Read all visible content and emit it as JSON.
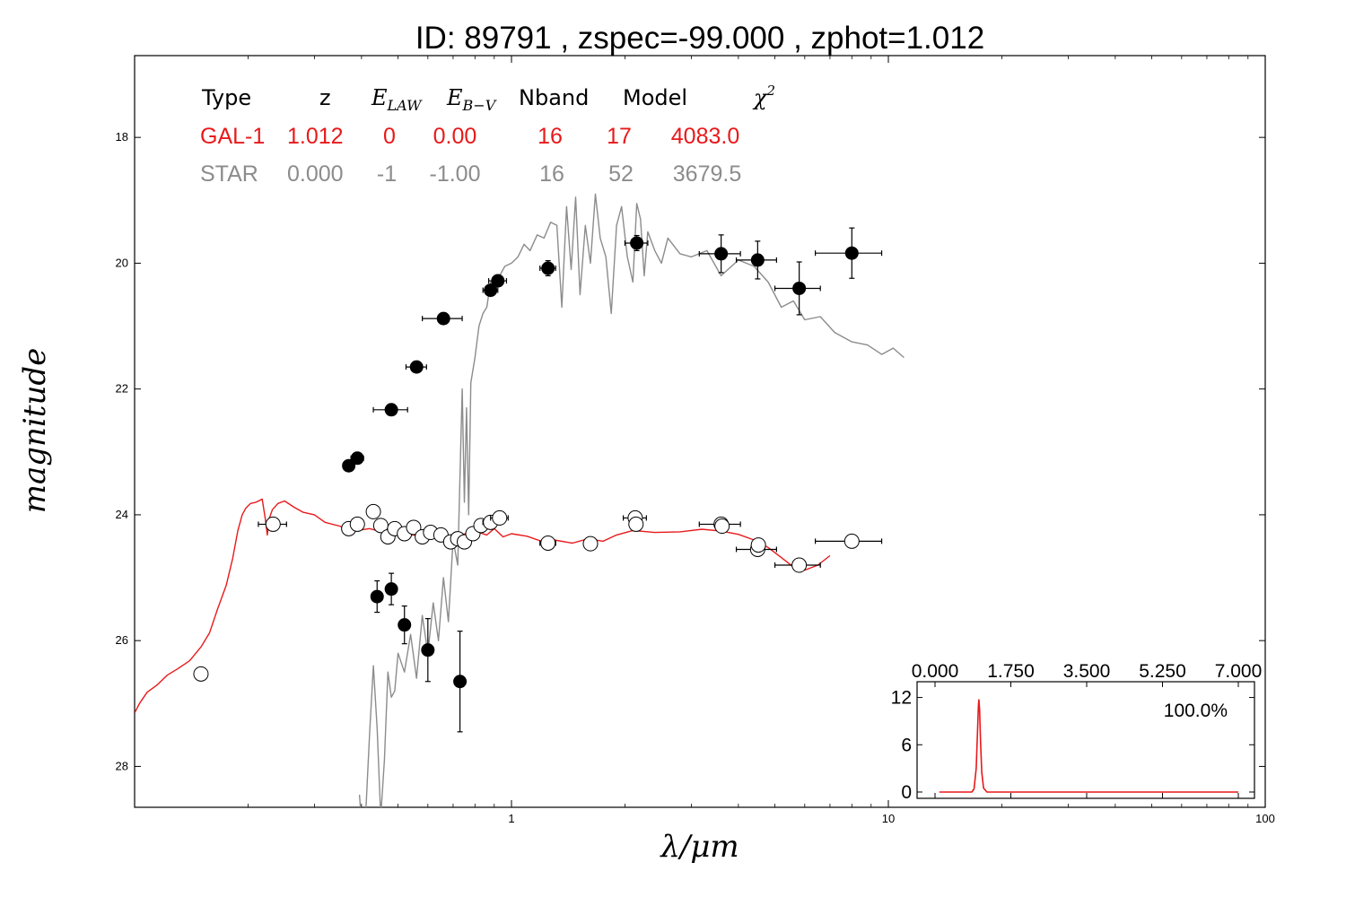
{
  "chart_data": [
    {
      "type": "scatter",
      "title": "ID:  89791 , zspec=-99.000 , zphot=1.012",
      "xlabel": "λ/μm",
      "ylabel": "magnitude",
      "xscale": "log",
      "xlim": [
        0.1,
        100
      ],
      "ylim": [
        28.65,
        16.7
      ],
      "y_inverted": true,
      "xticks": [
        1,
        10,
        100
      ],
      "xtick_labels": [
        "1",
        "10",
        "100"
      ],
      "yticks": [
        18,
        20,
        22,
        24,
        26,
        28
      ],
      "ytick_labels": [
        "18",
        "20",
        "22",
        "24",
        "26",
        "28"
      ],
      "grid": false,
      "colors": {
        "galaxy": "#e8191b",
        "star": "#8c8c8c",
        "axes": "#000000"
      },
      "info_table": {
        "headers": [
          "Type",
          "z",
          "E_LAW",
          "E_B−V",
          "Nband",
          "Model",
          "χ²"
        ],
        "rows": [
          {
            "name": "GAL-1",
            "z": "1.012",
            "elaw": "0",
            "ebv": "0.00",
            "nband": "16",
            "model": "17",
            "chi2": "4083.0",
            "color": "#e8191b"
          },
          {
            "name": "STAR",
            "z": "0.000",
            "elaw": "-1",
            "ebv": "-1.00",
            "nband": "16",
            "model": "52",
            "chi2": "3679.5",
            "color": "#8c8c8c"
          }
        ]
      },
      "series": [
        {
          "name": "GAL-1",
          "kind": "line",
          "color": "#e8191b",
          "x": [
            0.1,
            0.103,
            0.108,
            0.115,
            0.122,
            0.13,
            0.14,
            0.15,
            0.158,
            0.166,
            0.175,
            0.182,
            0.188,
            0.193,
            0.197,
            0.203,
            0.21,
            0.218,
            0.222,
            0.225,
            0.228,
            0.232,
            0.24,
            0.25,
            0.265,
            0.28,
            0.3,
            0.32,
            0.35,
            0.38,
            0.42,
            0.46,
            0.5,
            0.55,
            0.6,
            0.65,
            0.7,
            0.76,
            0.82,
            0.86,
            0.9,
            0.95,
            1.0,
            1.1,
            1.2,
            1.3,
            1.45,
            1.6,
            1.75,
            1.9,
            2.1,
            2.4,
            2.8,
            3.2,
            3.6,
            4.0,
            4.4,
            4.8,
            5.2,
            5.6,
            6.0,
            6.5,
            7.0
          ],
          "y": [
            27.15,
            27.0,
            26.82,
            26.7,
            26.55,
            26.45,
            26.32,
            26.1,
            25.88,
            25.5,
            25.12,
            24.7,
            24.25,
            24.0,
            23.9,
            23.82,
            23.8,
            23.75,
            24.05,
            24.32,
            24.05,
            23.92,
            23.82,
            23.78,
            23.88,
            23.96,
            24.0,
            24.12,
            24.18,
            24.26,
            24.22,
            24.28,
            24.3,
            24.32,
            24.35,
            24.38,
            24.34,
            24.3,
            24.28,
            24.32,
            24.22,
            24.35,
            24.3,
            24.34,
            24.42,
            24.4,
            24.45,
            24.38,
            24.42,
            24.32,
            24.25,
            24.28,
            24.27,
            24.23,
            24.26,
            24.31,
            24.4,
            24.52,
            24.68,
            24.83,
            24.88,
            24.8,
            24.65
          ]
        },
        {
          "name": "STAR",
          "kind": "line",
          "color": "#8c8c8c",
          "x": [
            0.395,
            0.4,
            0.41,
            0.42,
            0.43,
            0.44,
            0.45,
            0.46,
            0.47,
            0.48,
            0.49,
            0.5,
            0.52,
            0.54,
            0.56,
            0.58,
            0.6,
            0.62,
            0.64,
            0.66,
            0.68,
            0.7,
            0.72,
            0.74,
            0.75,
            0.76,
            0.77,
            0.78,
            0.8,
            0.82,
            0.84,
            0.86,
            0.88,
            0.9,
            0.93,
            0.96,
            1.0,
            1.04,
            1.08,
            1.12,
            1.17,
            1.22,
            1.27,
            1.32,
            1.36,
            1.4,
            1.44,
            1.48,
            1.52,
            1.57,
            1.62,
            1.67,
            1.72,
            1.78,
            1.84,
            1.9,
            1.96,
            2.03,
            2.1,
            2.15,
            2.2,
            2.25,
            2.3,
            2.4,
            2.5,
            2.6,
            2.8,
            3.0,
            3.3,
            3.6,
            4.0,
            4.4,
            4.8,
            5.2,
            5.6,
            6.0,
            6.6,
            7.2,
            8.0,
            8.8,
            9.6,
            10.3,
            11.0
          ],
          "y": [
            28.45,
            28.9,
            28.8,
            27.5,
            26.4,
            27.4,
            28.8,
            27.9,
            26.5,
            26.9,
            26.8,
            26.2,
            26.5,
            25.9,
            26.6,
            25.6,
            26.2,
            25.4,
            26.0,
            25.0,
            25.7,
            24.4,
            24.8,
            22.0,
            23.8,
            22.3,
            24.0,
            21.9,
            21.5,
            21.0,
            20.8,
            20.7,
            20.3,
            20.5,
            20.2,
            20.05,
            20.0,
            19.9,
            19.7,
            19.8,
            19.55,
            19.6,
            19.35,
            19.4,
            20.7,
            19.1,
            20.1,
            18.95,
            20.5,
            19.4,
            20.0,
            18.9,
            19.6,
            19.9,
            20.8,
            19.4,
            19.1,
            19.9,
            20.3,
            19.05,
            19.3,
            20.2,
            19.5,
            19.8,
            20.0,
            19.6,
            19.85,
            19.9,
            19.8,
            20.2,
            19.95,
            20.05,
            20.3,
            20.7,
            20.6,
            20.9,
            20.85,
            21.1,
            21.25,
            21.3,
            21.45,
            21.35,
            21.5
          ]
        },
        {
          "name": "observed",
          "kind": "points",
          "marker": "filled-circle",
          "color": "#000000",
          "x": [
            0.37,
            0.39,
            0.48,
            0.56,
            0.66,
            0.88,
            0.92,
            1.25,
            2.15,
            3.6,
            4.5,
            5.8,
            8.0,
            0.44,
            0.48,
            0.52,
            0.6,
            0.73
          ],
          "y": [
            23.22,
            23.1,
            22.33,
            21.65,
            20.88,
            20.43,
            20.28,
            20.08,
            19.68,
            19.85,
            19.95,
            20.4,
            19.84,
            25.3,
            25.18,
            25.75,
            26.15,
            26.65
          ],
          "xerr": [
            0.012,
            0.015,
            0.05,
            0.035,
            0.08,
            0.04,
            0.05,
            0.06,
            0.15,
            0.45,
            0.55,
            0.8,
            1.6,
            0.0,
            0.0,
            0.0,
            0.0,
            0.0
          ],
          "yerr": [
            0.05,
            0.05,
            0.05,
            0.05,
            0.05,
            0.05,
            0.05,
            0.12,
            0.12,
            0.3,
            0.3,
            0.42,
            0.4,
            0.25,
            0.25,
            0.3,
            0.5,
            0.8
          ]
        },
        {
          "name": "model magnitudes",
          "kind": "points",
          "marker": "open-circle",
          "color": "#000000",
          "x": [
            0.15,
            0.233,
            0.37,
            0.39,
            0.43,
            0.45,
            0.47,
            0.49,
            0.52,
            0.55,
            0.58,
            0.61,
            0.65,
            0.69,
            0.72,
            0.75,
            0.79,
            0.83,
            0.88,
            0.93,
            1.25,
            1.62,
            2.13,
            2.14,
            3.6,
            3.62,
            4.5,
            4.52,
            5.8,
            8.0
          ],
          "y": [
            26.53,
            24.15,
            24.22,
            24.15,
            23.95,
            24.17,
            24.35,
            24.22,
            24.3,
            24.2,
            24.35,
            24.28,
            24.32,
            24.43,
            24.38,
            24.43,
            24.3,
            24.17,
            24.12,
            24.05,
            24.45,
            24.46,
            24.05,
            24.15,
            24.15,
            24.18,
            24.55,
            24.48,
            24.8,
            24.42
          ],
          "xerr": [
            0.0,
            0.02,
            0.0,
            0.0,
            0.0,
            0.0,
            0.0,
            0.0,
            0.0,
            0.0,
            0.0,
            0.0,
            0.0,
            0.0,
            0.0,
            0.0,
            0.0,
            0.0,
            0.04,
            0.05,
            0.06,
            0.0,
            0.15,
            0.0,
            0.45,
            0.0,
            0.55,
            0.0,
            0.8,
            1.6
          ]
        }
      ]
    },
    {
      "type": "line",
      "title": "",
      "xlim": [
        0,
        7
      ],
      "ylim": [
        -0.8,
        14
      ],
      "xticks": [
        0,
        1.75,
        3.5,
        5.25,
        7
      ],
      "xtick_labels": [
        "0.000",
        "1.750",
        "3.500",
        "5.250",
        "7.000"
      ],
      "yticks": [
        0,
        6,
        12
      ],
      "ytick_labels": [
        "0",
        "6",
        "12"
      ],
      "annotation": "100.0%",
      "series": [
        {
          "name": "PDF(z)",
          "color": "#e8191b",
          "x": [
            0.1,
            0.85,
            0.9,
            0.95,
            0.98,
            1.0,
            1.012,
            1.03,
            1.05,
            1.08,
            1.12,
            1.2,
            1.5,
            7.0
          ],
          "y": [
            0,
            0,
            0.4,
            3.0,
            7.5,
            10.8,
            11.7,
            10.4,
            6.5,
            2.5,
            0.5,
            0,
            0,
            0
          ]
        }
      ]
    }
  ]
}
